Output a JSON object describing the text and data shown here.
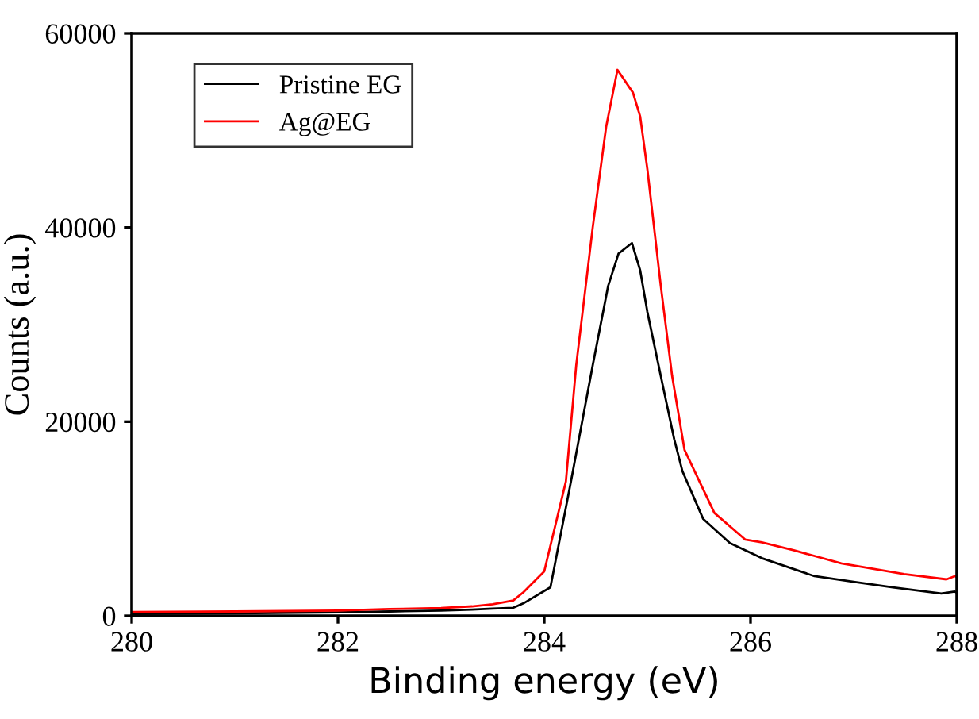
{
  "chart_data": {
    "type": "line",
    "xlabel": "Binding energy (eV)",
    "ylabel": "Counts (a.u.)",
    "xlim": [
      280,
      288
    ],
    "xticks": [
      280,
      282,
      284,
      286,
      288
    ],
    "ylim": [
      0,
      60000
    ],
    "yticks": [
      0,
      20000,
      40000,
      60000
    ],
    "grid": false,
    "legend": "top left",
    "marker": "none",
    "line_style": "solid",
    "series": [
      {
        "name": "Pristine EG",
        "color": "#000000",
        "x": [
          280,
          281,
          282,
          282.5,
          283,
          283.3,
          283.5,
          283.7,
          283.8,
          284.06,
          284.26,
          284.47,
          284.62,
          284.72,
          284.85,
          284.93,
          285.0,
          285.13,
          285.26,
          285.34,
          285.54,
          285.8,
          286.11,
          286.62,
          287.0,
          287.38,
          287.85,
          287.98,
          288
        ],
        "values": [
          200,
          250,
          350,
          450,
          550,
          650,
          750,
          830,
          1300,
          2940,
          13900,
          25800,
          34000,
          37300,
          38400,
          35600,
          31300,
          24700,
          18200,
          14900,
          10000,
          7500,
          5940,
          4090,
          3500,
          2940,
          2290,
          2500,
          2400
        ]
      },
      {
        "name": "Ag@EG",
        "color": "#ff0000",
        "x": [
          280,
          281,
          282,
          282.5,
          283,
          283.3,
          283.5,
          283.7,
          283.8,
          284.0,
          284.21,
          284.31,
          284.47,
          284.6,
          284.71,
          284.86,
          284.93,
          285.0,
          285.13,
          285.24,
          285.36,
          285.65,
          285.95,
          286.11,
          286.42,
          286.88,
          287.49,
          287.9,
          287.98,
          288
        ],
        "values": [
          400,
          450,
          550,
          700,
          800,
          980,
          1200,
          1580,
          2450,
          4580,
          13850,
          25800,
          40000,
          50350,
          56240,
          53900,
          51450,
          46000,
          34000,
          24700,
          17100,
          10600,
          7850,
          7570,
          6750,
          5400,
          4300,
          3760,
          4090,
          4000
        ]
      }
    ]
  }
}
